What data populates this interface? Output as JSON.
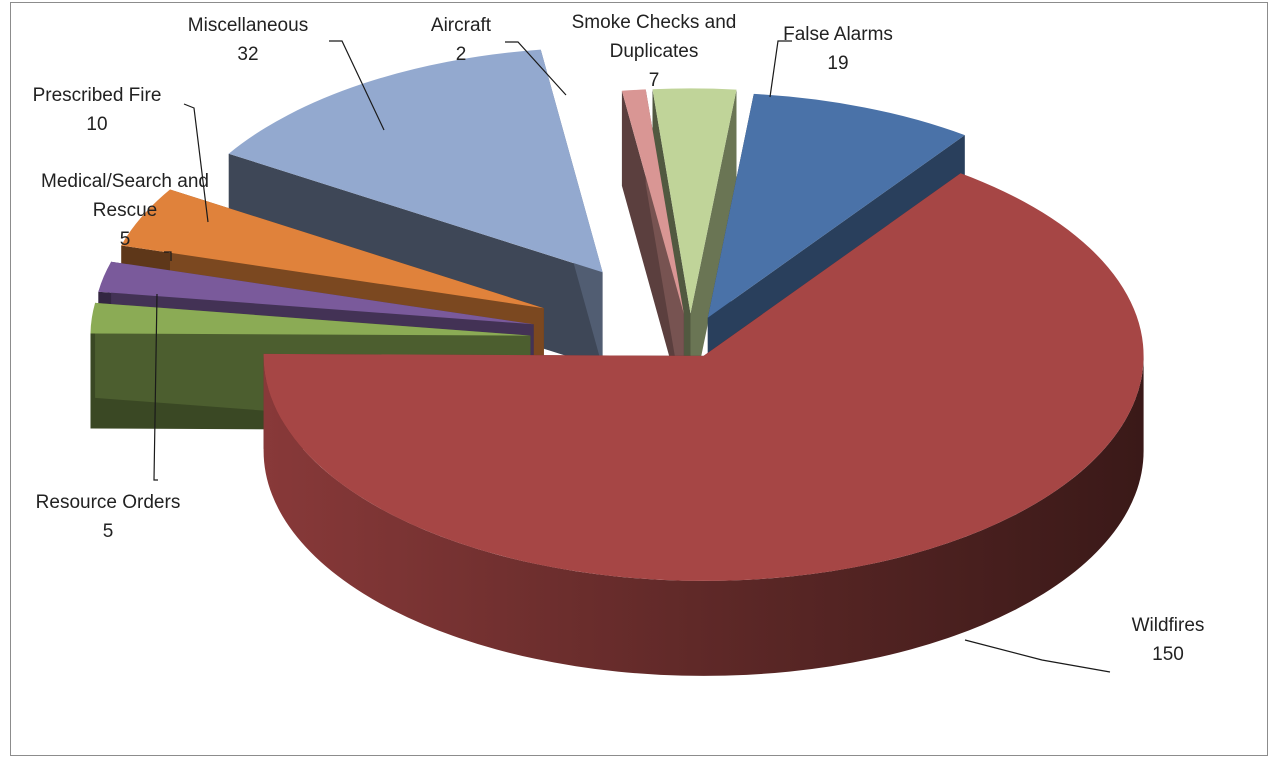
{
  "chart_data": {
    "type": "pie",
    "style": "3d-exploded",
    "title": "",
    "categories": [
      "False Alarms",
      "Wildfires",
      "Resource Orders",
      "Medical/Search and Rescue",
      "Prescribed Fire",
      "Miscellaneous",
      "Aircraft",
      "Smoke Checks and Duplicates"
    ],
    "values": [
      19,
      150,
      5,
      5,
      10,
      32,
      2,
      7
    ],
    "colors": [
      "#4a72a8",
      "#a64645",
      "#8bab55",
      "#7a5a9b",
      "#e0823b",
      "#93a9cf",
      "#d99694",
      "#c0d499"
    ],
    "legend": "none",
    "data_labels": [
      {
        "lines": [
          "False Alarms",
          "19"
        ]
      },
      {
        "lines": [
          "Wildfires",
          "150"
        ]
      },
      {
        "lines": [
          "Resource Orders",
          "5"
        ]
      },
      {
        "lines": [
          "Medical/Search and",
          "Rescue",
          "5"
        ]
      },
      {
        "lines": [
          "Prescribed Fire",
          "10"
        ]
      },
      {
        "lines": [
          "Miscellaneous",
          "32"
        ]
      },
      {
        "lines": [
          "Aircraft",
          "2"
        ]
      },
      {
        "lines": [
          "Smoke Checks and",
          "Duplicates",
          "7"
        ]
      }
    ]
  }
}
